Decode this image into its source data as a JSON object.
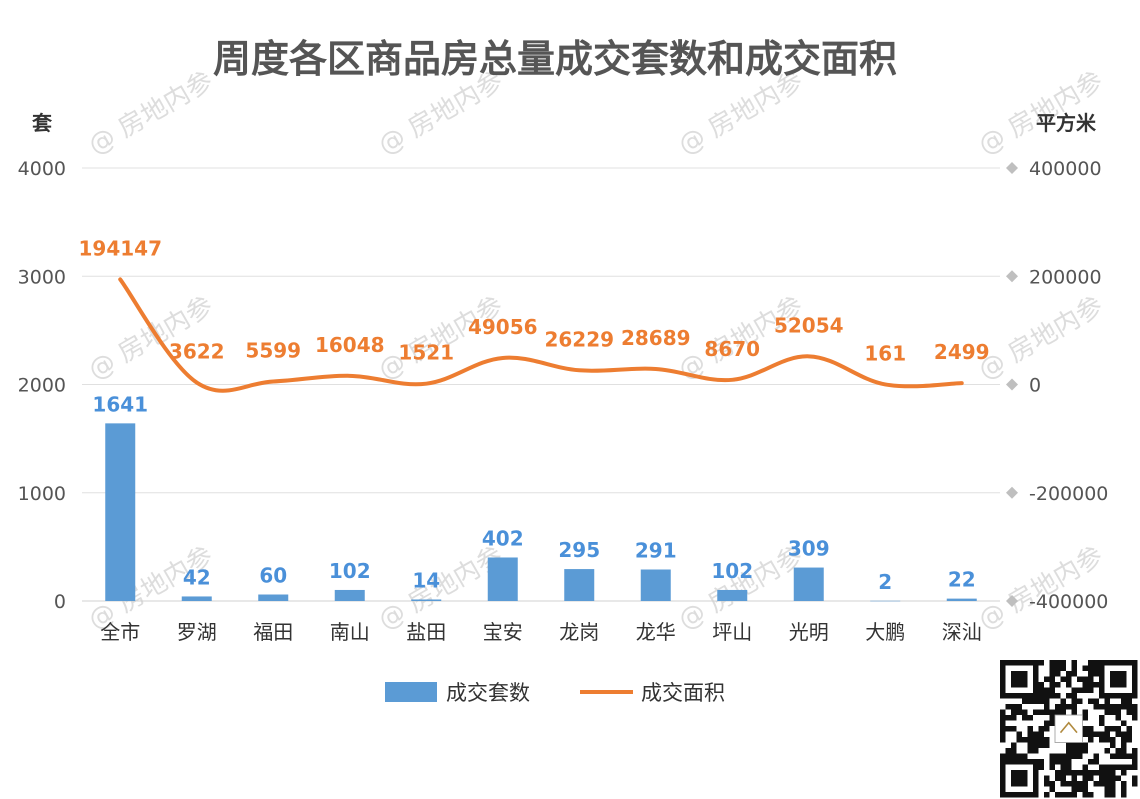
{
  "watermark": "@ 房地内参",
  "chart_data": {
    "type": "bar",
    "title": "周度各区商品房总量成交套数和成交面积",
    "ylabel_left": "套",
    "ylabel_right": "平方米",
    "ylim_left": [
      0,
      4000
    ],
    "ylim_right": [
      -400000,
      400000
    ],
    "yticks_left": [
      "0",
      "1000",
      "2000",
      "3000",
      "4000"
    ],
    "yticks_right": [
      "-400000",
      "-200000",
      "0",
      "200000",
      "400000"
    ],
    "categories": [
      "全市",
      "罗湖",
      "福田",
      "南山",
      "盐田",
      "宝安",
      "龙岗",
      "龙华",
      "坪山",
      "光明",
      "大鹏",
      "深汕"
    ],
    "series": [
      {
        "name": "成交套数",
        "type": "bar",
        "axis": "left",
        "color": "#5b9bd5",
        "values": [
          1641,
          42,
          60,
          102,
          14,
          402,
          295,
          291,
          102,
          309,
          2,
          22
        ],
        "labels": [
          "1641",
          "42",
          "60",
          "102",
          "14",
          "402",
          "295",
          "291",
          "102",
          "309",
          "2",
          "22"
        ]
      },
      {
        "name": "成交面积",
        "type": "line",
        "axis": "right",
        "color": "#ed7d31",
        "values": [
          194147,
          3622,
          5599,
          16048,
          1521,
          49056,
          26229,
          28689,
          8670,
          52054,
          161,
          2499
        ],
        "labels": [
          "194147",
          "3622",
          "5599",
          "16048",
          "1521",
          "49056",
          "26229",
          "28689",
          "8670",
          "52054",
          "161",
          "2499"
        ]
      }
    ],
    "legend": "bottom",
    "grid": true
  }
}
